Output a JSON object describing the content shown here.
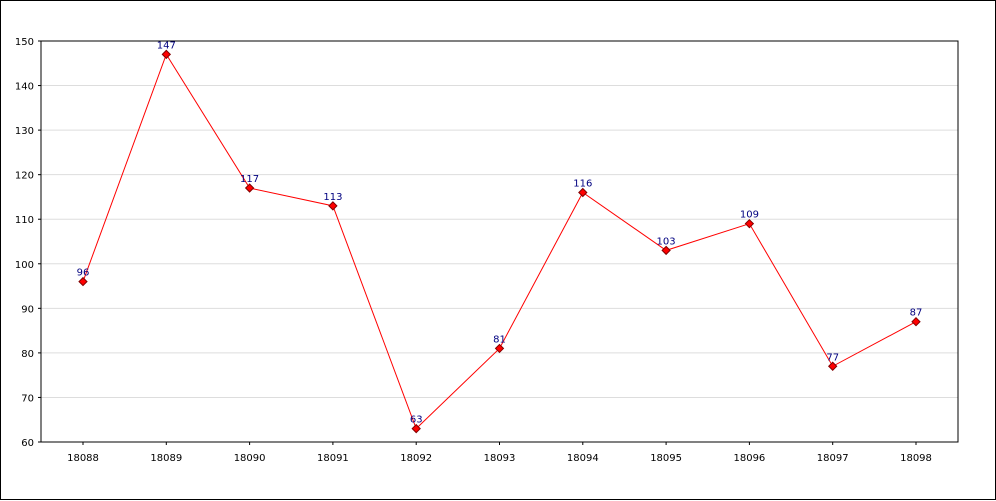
{
  "chart_data": {
    "type": "line",
    "title": "",
    "xlabel": "",
    "ylabel": "",
    "categories": [
      "18088",
      "18089",
      "18090",
      "18091",
      "18092",
      "18093",
      "18094",
      "18095",
      "18096",
      "18097",
      "18098"
    ],
    "series": [
      {
        "values": [
          96,
          147,
          117,
          113,
          63,
          81,
          116,
          103,
          109,
          77,
          87
        ],
        "color": "#ff0000",
        "marker": "diamond"
      }
    ],
    "ylim": [
      60,
      150
    ],
    "yticks": [
      60,
      70,
      80,
      90,
      100,
      110,
      120,
      130,
      140,
      150
    ],
    "grid": true,
    "legend": "none",
    "data_labels": true,
    "colors": {
      "line": "#ff0000",
      "marker_fill": "#ff0000",
      "marker_stroke": "#800000",
      "data_label": "#000080",
      "grid": "#dddddd",
      "axis": "#000000"
    }
  }
}
